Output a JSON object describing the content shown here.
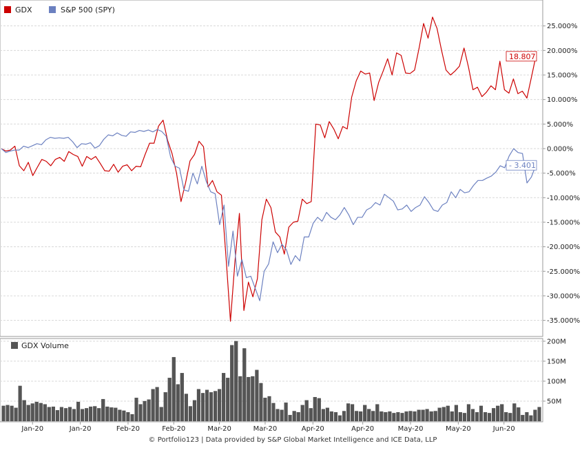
{
  "chart_data": [
    {
      "type": "line",
      "title": "",
      "xlabel": "",
      "ylabel": "",
      "ylim": [
        -38,
        30
      ],
      "grid": true,
      "legend_position": "top-left",
      "y_ticks": [
        "25.000%",
        "20.000%",
        "15.000%",
        "10.000%",
        "5.000%",
        "0.000%",
        "-5.000%",
        "-10.000%",
        "-15.000%",
        "-20.000%",
        "-25.000%",
        "-30.000%",
        "-35.000%"
      ],
      "y_tick_values": [
        25,
        20,
        15,
        10,
        5,
        0,
        -5,
        -10,
        -15,
        -20,
        -25,
        -30,
        -35
      ],
      "series": [
        {
          "name": "GDX",
          "color": "#cc0000",
          "last_label": "18.807",
          "values": [
            0,
            -0.5,
            -0.3,
            0.5,
            -3.5,
            -4.5,
            -2.8,
            -5.5,
            -3.8,
            -2.2,
            -2.6,
            -3.5,
            -2.2,
            -1.8,
            -2.6,
            -0.6,
            -1.2,
            -1.6,
            -3.6,
            -1.6,
            -2.2,
            -1.6,
            -3.0,
            -4.5,
            -4.6,
            -3.2,
            -4.8,
            -3.6,
            -3.3,
            -4.5,
            -3.6,
            -3.7,
            -1.2,
            1.1,
            1.1,
            4.6,
            5.8,
            1.7,
            -1.0,
            -5.0,
            -10.8,
            -7.0,
            -2.5,
            -1.2,
            1.5,
            0.4,
            -7.8,
            -6.5,
            -8.8,
            -9.5,
            -22.0,
            -35.2,
            -23.0,
            -13.2,
            -33.0,
            -27.2,
            -30.2,
            -26.5,
            -14.5,
            -10.3,
            -12.0,
            -17.0,
            -18.0,
            -21.5,
            -16.0,
            -15.0,
            -14.8,
            -10.3,
            -11.2,
            -10.8,
            5.0,
            4.8,
            2.2,
            5.5,
            4.0,
            2.0,
            4.5,
            4.0,
            10.5,
            13.8,
            15.8,
            15.2,
            15.4,
            9.8,
            13.5,
            15.8,
            18.3,
            15.0,
            19.5,
            19.0,
            15.4,
            15.3,
            16.0,
            20.5,
            25.5,
            22.5,
            26.8,
            24.5,
            20.0,
            16.0,
            15.0,
            15.8,
            16.8,
            20.5,
            16.6,
            12.0,
            12.5,
            10.6,
            11.5,
            12.8,
            12.0,
            17.8,
            12.0,
            11.3,
            14.2,
            11.2,
            11.7,
            10.3,
            14.5,
            18.807
          ]
        },
        {
          "name": "S&P 500 (SPY)",
          "color": "#6b80c0",
          "last_label": "- 3.401",
          "values": [
            0,
            -0.8,
            -0.5,
            -0.3,
            -0.3,
            0.5,
            0.2,
            0.6,
            1.0,
            0.8,
            1.8,
            2.3,
            2.1,
            2.2,
            2.1,
            2.3,
            1.4,
            0.2,
            1.0,
            0.9,
            1.2,
            0.1,
            0.6,
            1.9,
            2.8,
            2.6,
            3.2,
            2.7,
            2.5,
            3.4,
            3.3,
            3.7,
            3.5,
            3.8,
            3.4,
            3.9,
            3.5,
            2.5,
            -1.7,
            -3.6,
            -4.0,
            -8.4,
            -8.7,
            -5.0,
            -7.2,
            -3.6,
            -6.7,
            -8.8,
            -9.2,
            -15.5,
            -11.5,
            -24.0,
            -16.8,
            -26.0,
            -22.6,
            -26.3,
            -26.0,
            -28.5,
            -31.0,
            -25.0,
            -23.5,
            -19.0,
            -21.2,
            -19.5,
            -20.6,
            -23.6,
            -21.8,
            -22.9,
            -18.0,
            -18.0,
            -15.2,
            -14.0,
            -14.8,
            -13.0,
            -14.0,
            -14.5,
            -13.5,
            -12.0,
            -13.5,
            -15.5,
            -14.0,
            -14.0,
            -12.5,
            -12.0,
            -11.0,
            -11.5,
            -9.3,
            -10.0,
            -10.7,
            -12.5,
            -12.3,
            -11.5,
            -12.8,
            -12.0,
            -11.5,
            -9.8,
            -11.0,
            -12.5,
            -12.8,
            -11.5,
            -11.0,
            -8.8,
            -10.0,
            -8.3,
            -9.0,
            -8.8,
            -7.5,
            -6.5,
            -6.5,
            -6.0,
            -5.6,
            -4.8,
            -3.5,
            -3.9,
            -1.5,
            0.0,
            -0.8,
            -1.0,
            -7.0,
            -5.8,
            -3.401
          ]
        }
      ]
    },
    {
      "type": "bar",
      "title": "",
      "legend": "GDX Volume",
      "color": "#555555",
      "ylim": [
        0,
        205
      ],
      "y_ticks": [
        "200M",
        "150M",
        "100M",
        "50M"
      ],
      "y_tick_values": [
        200,
        150,
        100,
        50
      ],
      "x_ticks": [
        "Jan-20",
        "Jan-20",
        "Feb-20",
        "Feb-20",
        "Mar-20",
        "Mar-20",
        "Apr-20",
        "Apr-20",
        "May-20",
        "May-20",
        "Jun-20"
      ],
      "x_tick_positions": [
        7.5,
        19,
        30.5,
        41.5,
        52.5,
        63.5,
        75,
        87,
        98.5,
        110,
        121
      ],
      "values": [
        38,
        40,
        38,
        33,
        88,
        52,
        40,
        44,
        48,
        45,
        42,
        35,
        36,
        27,
        35,
        32,
        35,
        30,
        48,
        30,
        32,
        36,
        37,
        32,
        55,
        36,
        34,
        33,
        28,
        26,
        22,
        17,
        58,
        42,
        50,
        54,
        80,
        85,
        35,
        72,
        108,
        160,
        92,
        120,
        68,
        37,
        52,
        80,
        70,
        78,
        72,
        75,
        80,
        120,
        108,
        190,
        200,
        112,
        182,
        110,
        112,
        128,
        95,
        58,
        62,
        45,
        30,
        28,
        46,
        15,
        25,
        22,
        40,
        52,
        32,
        60,
        57,
        30,
        33,
        24,
        22,
        14,
        25,
        44,
        42,
        25,
        24,
        40,
        30,
        25,
        42,
        24,
        22,
        24,
        20,
        22,
        20,
        24,
        25,
        24,
        28,
        28,
        30,
        24,
        25,
        33,
        35,
        38,
        24,
        40,
        22,
        20,
        42,
        30,
        22,
        38,
        22,
        20,
        32,
        38,
        42,
        22,
        20,
        44,
        34,
        15,
        22,
        14,
        28,
        35
      ]
    }
  ],
  "footer": "© Portfolio123 | Data provided by S&P Global Market Intelligence and ICE Data, LLP"
}
